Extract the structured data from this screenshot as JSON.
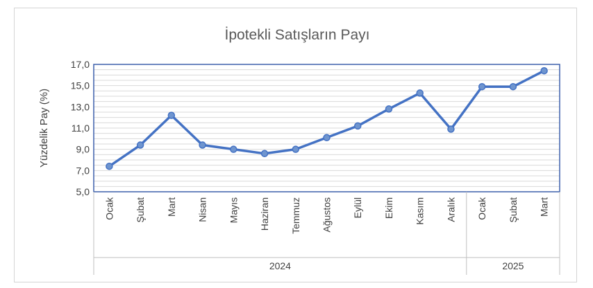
{
  "chart_data": {
    "type": "line",
    "title": "İpotekli Satışların Payı",
    "xlabel": "",
    "ylabel": "Yüzdelik Pay (%)",
    "ylim": [
      5,
      17
    ],
    "yticks": [
      "5,0",
      "7,0",
      "9,0",
      "11,0",
      "13,0",
      "15,0",
      "17,0"
    ],
    "grid": true,
    "legend": "none",
    "categories": [
      "Ocak",
      "Şubat",
      "Mart",
      "Nisan",
      "Mayıs",
      "Haziran",
      "Temmuz",
      "Ağustos",
      "Eylül",
      "Ekim",
      "Kasım",
      "Aralık",
      "Ocak",
      "Şubat",
      "Mart"
    ],
    "groups": [
      {
        "label": "2024",
        "count": 12
      },
      {
        "label": "2025",
        "count": 3
      }
    ],
    "series": [
      {
        "values": [
          7.4,
          9.4,
          12.2,
          9.4,
          9.0,
          8.6,
          9.0,
          10.1,
          11.2,
          12.8,
          14.3,
          10.9,
          14.9,
          14.9,
          16.4
        ]
      }
    ],
    "colors": {
      "line": "#4472c4",
      "marker": "#6f95cf",
      "axis_frame": "#3b5fab",
      "grid": "#d9d9d9"
    }
  }
}
